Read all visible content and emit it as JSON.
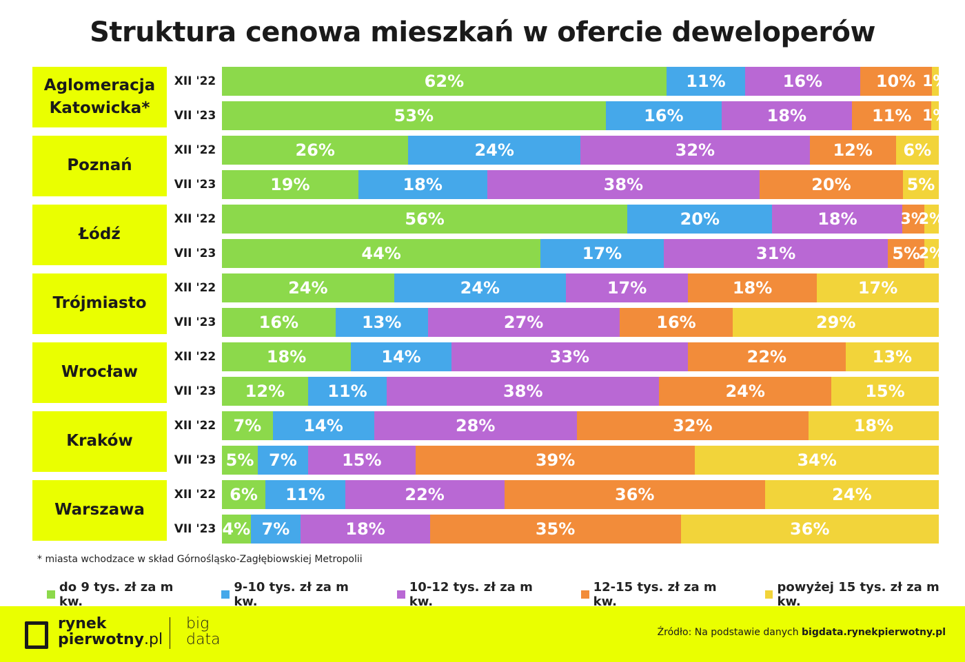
{
  "chart_data": {
    "type": "bar",
    "orientation": "horizontal-stacked-100",
    "title": "Struktura cenowa mieszkań w ofercie deweloperów",
    "legend_placement": "bottom",
    "series_names": [
      "do 9 tys. zł za m kw.",
      "9-10 tys. zł za m kw.",
      "10-12 tys. zł za m kw.",
      "12-15 tys. zł za m kw.",
      "powyżej 15 tys. zł za m kw."
    ],
    "colors": [
      "#8cd94b",
      "#45a8ea",
      "#b968d4",
      "#f28c3a",
      "#f2d43a"
    ],
    "groups": [
      {
        "name": "Aglomeracja Katowicka*",
        "rows": [
          {
            "period": "XII '22",
            "values": [
              62,
              11,
              16,
              10,
              1
            ]
          },
          {
            "period": "VII '23",
            "values": [
              53,
              16,
              18,
              11,
              1
            ]
          }
        ]
      },
      {
        "name": "Poznań",
        "rows": [
          {
            "period": "XII '22",
            "values": [
              26,
              24,
              32,
              12,
              6
            ]
          },
          {
            "period": "VII '23",
            "values": [
              19,
              18,
              38,
              20,
              5
            ]
          }
        ]
      },
      {
        "name": "Łódź",
        "rows": [
          {
            "period": "XII '22",
            "values": [
              56,
              20,
              18,
              3,
              2
            ]
          },
          {
            "period": "VII '23",
            "values": [
              44,
              17,
              31,
              5,
              2
            ]
          }
        ]
      },
      {
        "name": "Trójmiasto",
        "rows": [
          {
            "period": "XII '22",
            "values": [
              24,
              24,
              17,
              18,
              17
            ]
          },
          {
            "period": "VII '23",
            "values": [
              16,
              13,
              27,
              16,
              29
            ]
          }
        ]
      },
      {
        "name": "Wrocław",
        "rows": [
          {
            "period": "XII '22",
            "values": [
              18,
              14,
              33,
              22,
              13
            ]
          },
          {
            "period": "VII '23",
            "values": [
              12,
              11,
              38,
              24,
              15
            ]
          }
        ]
      },
      {
        "name": "Kraków",
        "rows": [
          {
            "period": "XII '22",
            "values": [
              7,
              14,
              28,
              32,
              18
            ]
          },
          {
            "period": "VII '23",
            "values": [
              5,
              7,
              15,
              39,
              34
            ]
          }
        ]
      },
      {
        "name": "Warszawa",
        "rows": [
          {
            "period": "XII '22",
            "values": [
              6,
              11,
              22,
              36,
              24
            ]
          },
          {
            "period": "VII '23",
            "values": [
              4,
              7,
              18,
              35,
              36
            ]
          }
        ]
      }
    ]
  },
  "note": "* miasta wchodzace w skład Górnośląsko-Zagłębiowskiej Metropolii",
  "footer": {
    "logo_text": "rynek pierwotny.pl",
    "logo2_text": "big data",
    "source_prefix": "Źródło: Na podstawie danych ",
    "source_link": "bigdata.rynekpierwotny.pl"
  }
}
